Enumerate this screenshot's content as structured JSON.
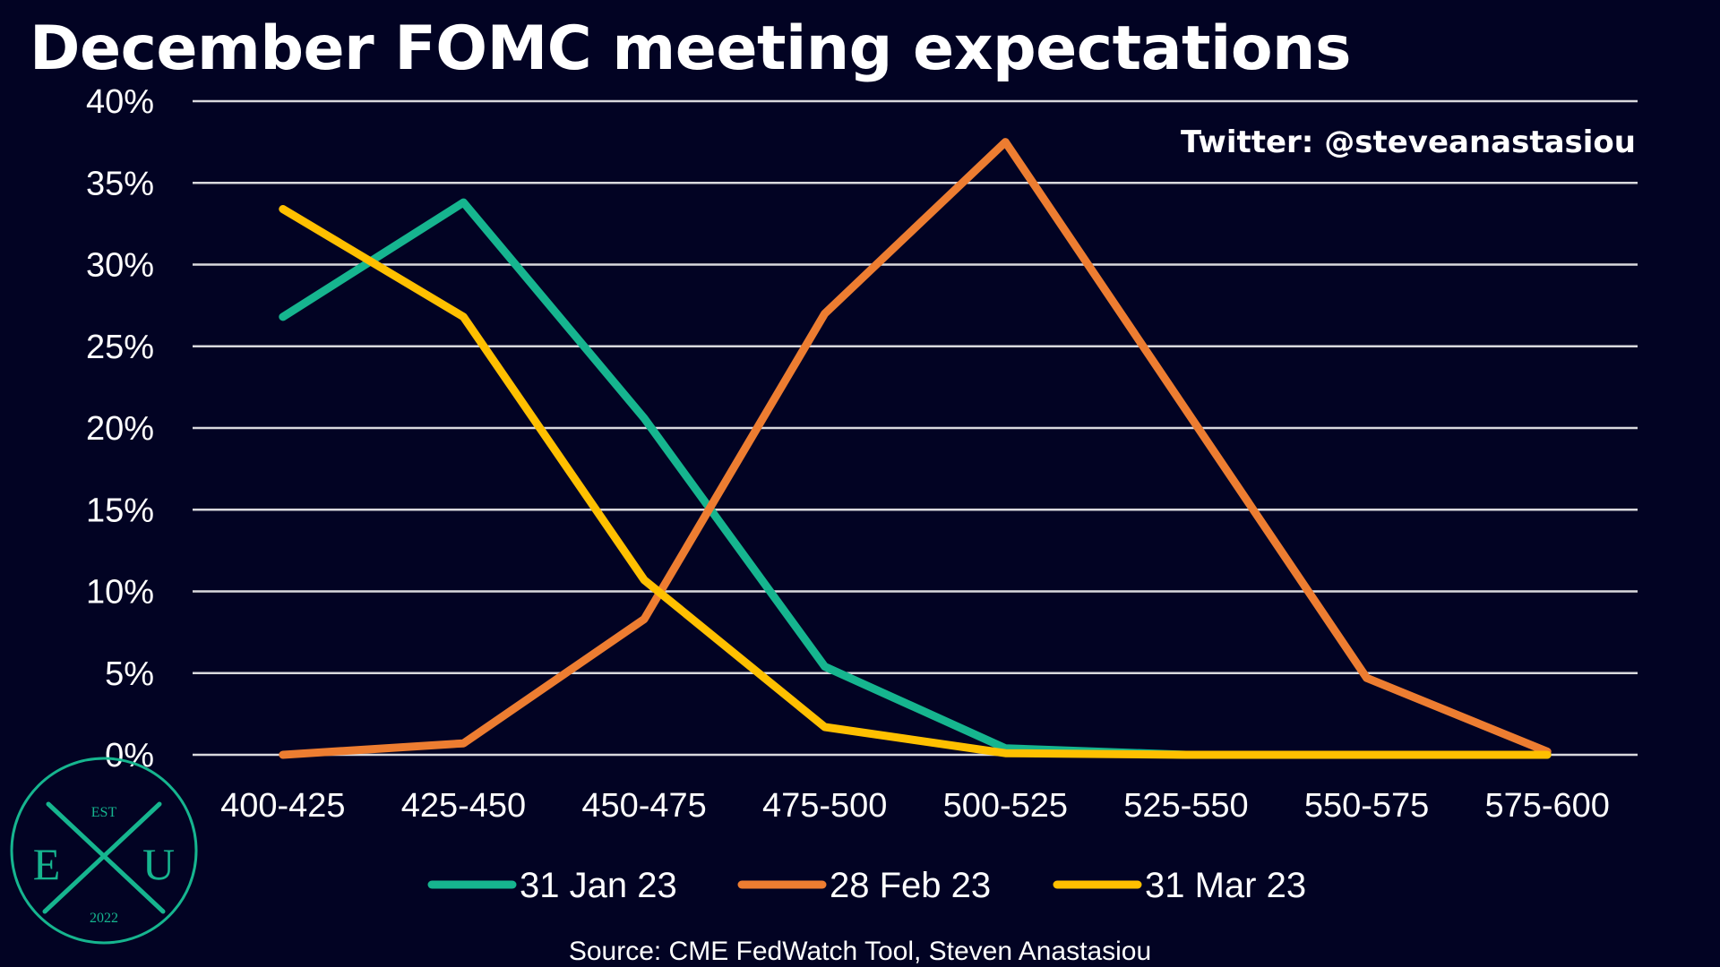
{
  "title": "December FOMC meeting expectations",
  "watermark": "Twitter: @steveanastasiou",
  "source": "Source: CME FedWatch Tool, Steven Anastasiou",
  "logo": {
    "top": "EST",
    "left": "E",
    "right": "U",
    "bottom": "2022",
    "color": "#16b58f"
  },
  "colors": {
    "background": "#020323",
    "gridline": "#d9d9dd",
    "text": "#ffffff"
  },
  "chart_data": {
    "type": "line",
    "title": "December FOMC meeting expectations",
    "xlabel": "",
    "ylabel": "",
    "ylim": [
      0,
      40
    ],
    "yticks": [
      0,
      5,
      10,
      15,
      20,
      25,
      30,
      35,
      40
    ],
    "ytick_labels": [
      "0%",
      "5%",
      "10%",
      "15%",
      "20%",
      "25%",
      "30%",
      "35%",
      "40%"
    ],
    "categories": [
      "400-425",
      "425-450",
      "450-475",
      "475-500",
      "500-525",
      "525-550",
      "550-575",
      "575-600"
    ],
    "grid": "horizontal",
    "legend_position": "bottom",
    "series": [
      {
        "name": "31 Jan 23",
        "color": "#16b58f",
        "values": [
          26.8,
          33.8,
          20.6,
          5.4,
          0.4,
          0,
          0,
          0
        ]
      },
      {
        "name": "28 Feb 23",
        "color": "#ed7d31",
        "values": [
          0,
          0.7,
          8.3,
          27.0,
          37.5,
          21.1,
          4.7,
          0.2
        ]
      },
      {
        "name": "31 Mar 23",
        "color": "#ffc000",
        "values": [
          33.4,
          26.8,
          10.7,
          1.7,
          0.1,
          0,
          0,
          0
        ]
      }
    ]
  }
}
